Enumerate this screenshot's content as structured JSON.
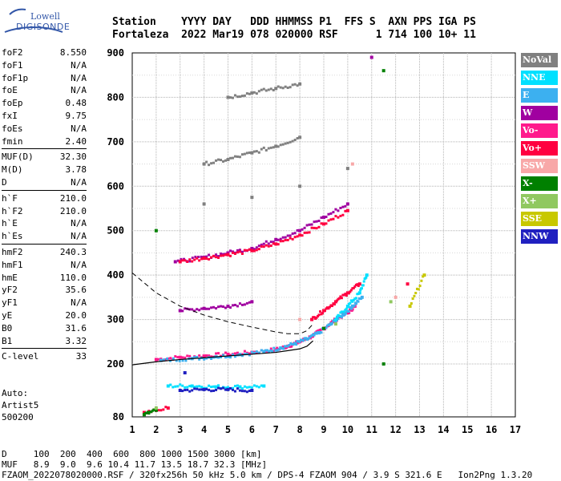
{
  "logo": {
    "line1": "Lowell",
    "line2": "DIGISONDE"
  },
  "header": {
    "line1": "Station    YYYY DAY   DDD HHMMSS P1  FFS S  AXN PPS IGA PS",
    "line2": "Fortaleza  2022 Mar19 078 020000 RSF      1 714 100 10+ 11"
  },
  "params": [
    [
      {
        "k": "foF2",
        "v": "8.550"
      },
      {
        "k": "foF1",
        "v": "N/A"
      },
      {
        "k": "foF1p",
        "v": "N/A"
      },
      {
        "k": "foE",
        "v": "N/A"
      },
      {
        "k": "foEp",
        "v": "0.48"
      },
      {
        "k": "fxI",
        "v": "9.75"
      },
      {
        "k": "foEs",
        "v": "N/A"
      },
      {
        "k": "fmin",
        "v": "2.40"
      }
    ],
    [
      {
        "k": "MUF(D)",
        "v": "32.30"
      },
      {
        "k": "M(D)",
        "v": "3.78"
      },
      {
        "k": "D",
        "v": "N/A"
      }
    ],
    [
      {
        "k": "h`F",
        "v": "210.0"
      },
      {
        "k": "h`F2",
        "v": "210.0"
      },
      {
        "k": "h`E",
        "v": "N/A"
      },
      {
        "k": "h`Es",
        "v": "N/A"
      }
    ],
    [
      {
        "k": "hmF2",
        "v": "240.3"
      },
      {
        "k": "hmF1",
        "v": "N/A"
      },
      {
        "k": "hmE",
        "v": "110.0"
      },
      {
        "k": "yF2",
        "v": "35.6"
      },
      {
        "k": "yF1",
        "v": "N/A"
      },
      {
        "k": "yE",
        "v": "20.0"
      },
      {
        "k": "B0",
        "v": "31.6"
      },
      {
        "k": "B1",
        "v": "3.32"
      }
    ],
    [
      {
        "k": "C-level",
        "v": "33"
      }
    ]
  ],
  "auto": {
    "line1": "Auto:",
    "line2": "Artist5",
    "line3": "500200"
  },
  "legend": [
    {
      "label": "NoVal",
      "color": "#808080",
      "text": "#ffffff"
    },
    {
      "label": "NNE",
      "color": "#00e0ff",
      "text": "#ffffff"
    },
    {
      "label": "E",
      "color": "#3cb0f0",
      "text": "#ffffff"
    },
    {
      "label": "W",
      "color": "#a000a0",
      "text": "#ffffff"
    },
    {
      "label": "Vo-",
      "color": "#ff1a8c",
      "text": "#ffffff"
    },
    {
      "label": "Vo+",
      "color": "#ff0040",
      "text": "#ffffff"
    },
    {
      "label": "SSW",
      "color": "#f8a8a8",
      "text": "#ffffff"
    },
    {
      "label": "X-",
      "color": "#008000",
      "text": "#ffffff"
    },
    {
      "label": "X+",
      "color": "#90c860",
      "text": "#ffffff"
    },
    {
      "label": "SSE",
      "color": "#c8c800",
      "text": "#ffffff"
    },
    {
      "label": "NNW",
      "color": "#2020c0",
      "text": "#ffffff"
    }
  ],
  "bottom": {
    "line1": "D     100  200  400  600  800 1000 1500 3000 [km]",
    "line2": "MUF   8.9  9.0  9.6 10.4 11.7 13.5 18.7 32.3 [MHz]",
    "line3": "FZAOM_2022078020000.RSF / 320fx256h 50 kHz 5.0 km / DPS-4 FZAOM 904 / 3.9 S 321.6 E   Ion2Png 1.3.20"
  },
  "chart_data": {
    "type": "scatter",
    "xlim": [
      1,
      17
    ],
    "ylim": [
      80,
      900
    ],
    "xticks": [
      "1",
      "2",
      "3",
      "4",
      "5",
      "6",
      "7",
      "8",
      "9",
      "10",
      "11",
      "12",
      "13",
      "14",
      "15",
      "16",
      "17"
    ],
    "yticks": [
      "80",
      "200",
      "300",
      "400",
      "500",
      "600",
      "700",
      "800",
      "900"
    ],
    "grid": true,
    "traces": [
      {
        "series": "Vo-",
        "color": "#ff1a8c",
        "points": [
          [
            2.0,
            210
          ],
          [
            3.0,
            215
          ],
          [
            4.0,
            218
          ],
          [
            5.0,
            222
          ],
          [
            6.0,
            226
          ],
          [
            7.0,
            232
          ],
          [
            7.5,
            240
          ],
          [
            8.0,
            250
          ],
          [
            8.5,
            262
          ],
          [
            9.0,
            280
          ],
          [
            9.5,
            300
          ],
          [
            10.0,
            315
          ],
          [
            10.3,
            330
          ]
        ]
      },
      {
        "series": "E",
        "color": "#3cb0f0",
        "points": [
          [
            2.2,
            208
          ],
          [
            3.5,
            212
          ],
          [
            4.5,
            216
          ],
          [
            5.5,
            221
          ],
          [
            6.5,
            228
          ],
          [
            7.2,
            236
          ],
          [
            7.8,
            246
          ],
          [
            8.3,
            256
          ],
          [
            8.8,
            270
          ],
          [
            9.3,
            290
          ],
          [
            9.8,
            310
          ],
          [
            10.2,
            330
          ],
          [
            10.6,
            350
          ]
        ]
      },
      {
        "series": "NNE",
        "color": "#00e0ff",
        "points": [
          [
            2.5,
            150
          ],
          [
            3.5,
            150
          ],
          [
            4.5,
            148
          ],
          [
            5.5,
            148
          ],
          [
            6.5,
            150
          ],
          [
            9.5,
            300
          ],
          [
            10.0,
            330
          ],
          [
            10.5,
            360
          ],
          [
            10.8,
            400
          ]
        ]
      },
      {
        "series": "NNW",
        "color": "#2020c0",
        "points": [
          [
            3.0,
            140
          ],
          [
            4.0,
            142
          ],
          [
            5.0,
            142
          ],
          [
            6.0,
            140
          ],
          [
            3.2,
            180
          ]
        ]
      },
      {
        "series": "W",
        "color": "#a000a0",
        "points": [
          [
            3.0,
            320
          ],
          [
            4.0,
            325
          ],
          [
            5.0,
            330
          ],
          [
            6.0,
            340
          ],
          [
            2.8,
            430
          ],
          [
            4.0,
            440
          ],
          [
            5.0,
            450
          ],
          [
            6.0,
            460
          ],
          [
            7.0,
            480
          ],
          [
            8.0,
            500
          ],
          [
            9.0,
            530
          ],
          [
            10.0,
            560
          ],
          [
            11.0,
            890
          ]
        ]
      },
      {
        "series": "Vo+",
        "color": "#ff0040",
        "points": [
          [
            3.0,
            430
          ],
          [
            4.0,
            438
          ],
          [
            5.0,
            446
          ],
          [
            6.0,
            455
          ],
          [
            7.0,
            470
          ],
          [
            8.0,
            490
          ],
          [
            9.0,
            515
          ],
          [
            10.0,
            545
          ],
          [
            8.5,
            300
          ],
          [
            9.0,
            320
          ],
          [
            9.5,
            340
          ],
          [
            10.0,
            360
          ],
          [
            10.5,
            380
          ],
          [
            12.5,
            380
          ],
          [
            1.5,
            90
          ],
          [
            2.5,
            100
          ]
        ]
      },
      {
        "series": "NoVal",
        "color": "#808080",
        "points": [
          [
            4.0,
            650
          ],
          [
            5.0,
            660
          ],
          [
            6.0,
            675
          ],
          [
            7.0,
            690
          ],
          [
            8.0,
            710
          ],
          [
            5.0,
            800
          ],
          [
            6.0,
            810
          ],
          [
            7.0,
            820
          ],
          [
            8.0,
            830
          ],
          [
            4.0,
            560
          ],
          [
            6.0,
            575
          ],
          [
            8.0,
            600
          ],
          [
            10.0,
            640
          ]
        ]
      },
      {
        "series": "X-",
        "color": "#008000",
        "points": [
          [
            1.5,
            85
          ],
          [
            2.0,
            95
          ],
          [
            9.0,
            280
          ],
          [
            11.5,
            200
          ],
          [
            11.5,
            860
          ],
          [
            2.0,
            500
          ]
        ]
      },
      {
        "series": "X+",
        "color": "#90c860",
        "points": [
          [
            2.0,
            100
          ],
          [
            9.5,
            290
          ],
          [
            11.8,
            340
          ]
        ]
      },
      {
        "series": "SSE",
        "color": "#c8c800",
        "points": [
          [
            12.6,
            330
          ],
          [
            13.2,
            400
          ]
        ]
      },
      {
        "series": "SSW",
        "color": "#f8a8a8",
        "points": [
          [
            8.0,
            300
          ],
          [
            12.0,
            350
          ],
          [
            10.2,
            650
          ]
        ]
      }
    ],
    "profile": [
      [
        1.0,
        198
      ],
      [
        2.0,
        205
      ],
      [
        3.0,
        210
      ],
      [
        4.0,
        214
      ],
      [
        5.0,
        218
      ],
      [
        6.0,
        222
      ],
      [
        7.0,
        226
      ],
      [
        7.5,
        230
      ],
      [
        8.0,
        234
      ],
      [
        8.3,
        240
      ],
      [
        8.55,
        252
      ]
    ],
    "dashed": [
      [
        1.0,
        405
      ],
      [
        2.0,
        360
      ],
      [
        3.0,
        330
      ],
      [
        4.0,
        310
      ],
      [
        5.0,
        295
      ],
      [
        6.0,
        283
      ],
      [
        7.0,
        272
      ],
      [
        7.5,
        268
      ],
      [
        8.0,
        268
      ],
      [
        8.3,
        275
      ],
      [
        8.55,
        290
      ]
    ]
  }
}
